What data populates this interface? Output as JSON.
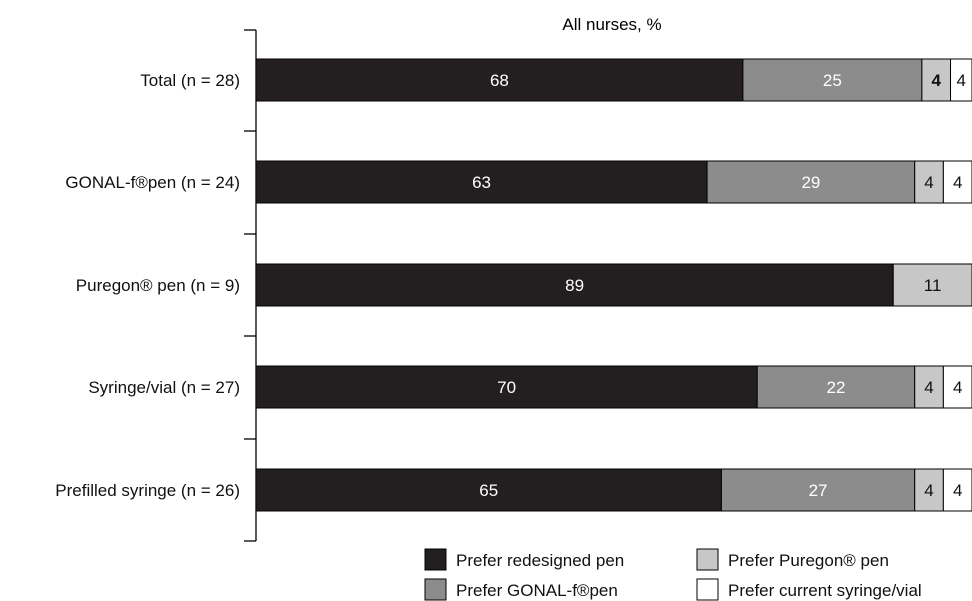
{
  "chart_data": {
    "type": "bar",
    "stacked": true,
    "orientation": "horizontal",
    "title": "All nurses, %",
    "xlim": [
      0,
      100
    ],
    "categories": [
      "Total (n = 28)",
      "GONAL-f®pen (n = 24)",
      "Puregon® pen (n = 9)",
      "Syringe/vial (n = 27)",
      "Prefilled syringe (n = 26)"
    ],
    "series": [
      {
        "name": "Prefer redesigned pen",
        "color": "#231f20",
        "label_color": "#ffffff",
        "values": [
          68,
          63,
          89,
          70,
          65
        ]
      },
      {
        "name": "Prefer GONAL-f®pen",
        "color": "#8c8c8c",
        "label_color": "#ffffff",
        "values": [
          25,
          29,
          0,
          22,
          27
        ]
      },
      {
        "name": "Prefer Puregon® pen",
        "color": "#c7c7c7",
        "label_color": "#111111",
        "values": [
          4,
          4,
          11,
          4,
          4
        ]
      },
      {
        "name": "Prefer current syringe/vial",
        "color": "#ffffff",
        "label_color": "#111111",
        "values": [
          4,
          4,
          0,
          4,
          4
        ]
      }
    ],
    "legend_position": "bottom-right",
    "grid": false
  }
}
